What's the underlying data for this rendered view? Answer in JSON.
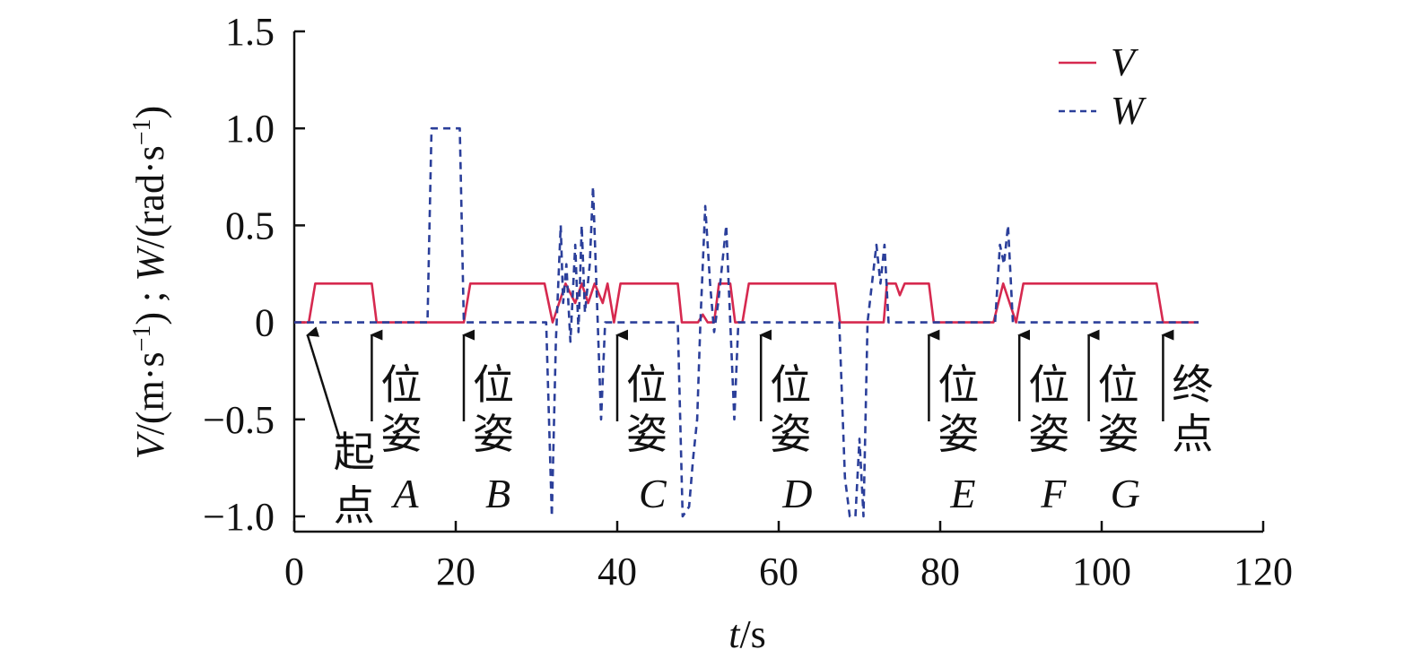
{
  "chart_data": {
    "type": "line",
    "xlabel": "t/s",
    "ylabel": "V/(m·s⁻¹) ; W/(rad·s⁻¹)",
    "xlim": [
      0,
      120
    ],
    "ylim": [
      -1.0,
      1.5
    ],
    "x_ticks": [
      "0",
      "20",
      "40",
      "60",
      "80",
      "100",
      "120"
    ],
    "y_ticks": [
      "1.5",
      "1.0",
      "0.5",
      "0",
      "−0.5",
      "−1.0"
    ],
    "legend_position": "top-right",
    "legend": [
      {
        "label": "V",
        "color": "#d6294f",
        "style": "solid"
      },
      {
        "label": "W",
        "color": "#2b3f9a",
        "style": "dashed"
      }
    ],
    "series": [
      {
        "name": "V",
        "color": "#d6294f",
        "points": [
          [
            0,
            0
          ],
          [
            1.8,
            0
          ],
          [
            2.6,
            0.2
          ],
          [
            9.6,
            0.2
          ],
          [
            10.2,
            0
          ],
          [
            21.0,
            0
          ],
          [
            21.8,
            0.2
          ],
          [
            31.0,
            0.2
          ],
          [
            32.0,
            0
          ],
          [
            32.8,
            0.1
          ],
          [
            33.6,
            0.2
          ],
          [
            34.8,
            0.1
          ],
          [
            35.6,
            0.2
          ],
          [
            36.4,
            0.1
          ],
          [
            37.2,
            0.2
          ],
          [
            38.2,
            0.1
          ],
          [
            38.8,
            0.2
          ],
          [
            39.6,
            0
          ],
          [
            40.4,
            0.2
          ],
          [
            47.5,
            0.2
          ],
          [
            48.0,
            0
          ],
          [
            50.0,
            0
          ],
          [
            50.6,
            0.04
          ],
          [
            51.2,
            0
          ],
          [
            52.0,
            0
          ],
          [
            52.6,
            0.2
          ],
          [
            54.0,
            0.2
          ],
          [
            54.6,
            0
          ],
          [
            55.5,
            0
          ],
          [
            56.3,
            0.2
          ],
          [
            67.0,
            0.2
          ],
          [
            67.6,
            0
          ],
          [
            73.0,
            0
          ],
          [
            73.4,
            0.2
          ],
          [
            74.5,
            0.2
          ],
          [
            75.0,
            0.14
          ],
          [
            75.6,
            0.2
          ],
          [
            78.6,
            0.2
          ],
          [
            79.2,
            0
          ],
          [
            86.6,
            0
          ],
          [
            87.8,
            0.2
          ],
          [
            88.6,
            0.1
          ],
          [
            89.4,
            0
          ],
          [
            90.3,
            0.2
          ],
          [
            106.8,
            0.2
          ],
          [
            107.6,
            0
          ],
          [
            112,
            0
          ]
        ]
      },
      {
        "name": "W",
        "color": "#2b3f9a",
        "points": [
          [
            0,
            0
          ],
          [
            16.5,
            0
          ],
          [
            17.0,
            1.0
          ],
          [
            20.5,
            1.0
          ],
          [
            21.0,
            0
          ],
          [
            31.2,
            0
          ],
          [
            31.9,
            -1.0
          ],
          [
            32.4,
            -0.1
          ],
          [
            33.0,
            0.5
          ],
          [
            33.3,
            0.1
          ],
          [
            33.7,
            0.3
          ],
          [
            34.2,
            -0.1
          ],
          [
            34.8,
            0.4
          ],
          [
            35.2,
            -0.05
          ],
          [
            35.6,
            0.5
          ],
          [
            36.0,
            0.05
          ],
          [
            36.6,
            0.3
          ],
          [
            37.0,
            0.7
          ],
          [
            37.5,
            0.1
          ],
          [
            38.0,
            -0.5
          ],
          [
            38.5,
            0
          ],
          [
            47.5,
            0
          ],
          [
            48.1,
            -1.0
          ],
          [
            48.9,
            -0.95
          ],
          [
            49.4,
            -0.7
          ],
          [
            49.9,
            -0.5
          ],
          [
            50.3,
            0
          ],
          [
            50.9,
            0.6
          ],
          [
            51.5,
            0.2
          ],
          [
            52.0,
            -0.05
          ],
          [
            52.5,
            0.1
          ],
          [
            53.0,
            0.3
          ],
          [
            53.5,
            0.5
          ],
          [
            54.0,
            0
          ],
          [
            54.5,
            -0.5
          ],
          [
            55.0,
            0
          ],
          [
            67.5,
            0
          ],
          [
            68.2,
            -0.8
          ],
          [
            68.8,
            -1.0
          ],
          [
            69.5,
            -1.0
          ],
          [
            70.0,
            -0.6
          ],
          [
            70.5,
            -1.0
          ],
          [
            71.0,
            0
          ],
          [
            72.1,
            0.4
          ],
          [
            72.6,
            0.2
          ],
          [
            73.1,
            0.4
          ],
          [
            73.6,
            0
          ],
          [
            86.8,
            0
          ],
          [
            87.4,
            0.4
          ],
          [
            87.9,
            0.3
          ],
          [
            88.4,
            0.5
          ],
          [
            89.0,
            0
          ],
          [
            112,
            0
          ]
        ]
      }
    ],
    "annotations": [
      {
        "label": "起点",
        "letter": "",
        "x": 1.2
      },
      {
        "label": "位姿",
        "letter": "A",
        "x": 9.6
      },
      {
        "label": "位姿",
        "letter": "B",
        "x": 21.0
      },
      {
        "label": "位姿",
        "letter": "C",
        "x": 40.0
      },
      {
        "label": "位姿",
        "letter": "D",
        "x": 57.8
      },
      {
        "label": "位姿",
        "letter": "E",
        "x": 78.6
      },
      {
        "label": "位姿",
        "letter": "F",
        "x": 89.8
      },
      {
        "label": "位姿",
        "letter": "G",
        "x": 98.4
      },
      {
        "label": "终点",
        "letter": "",
        "x": 107.6
      }
    ]
  }
}
